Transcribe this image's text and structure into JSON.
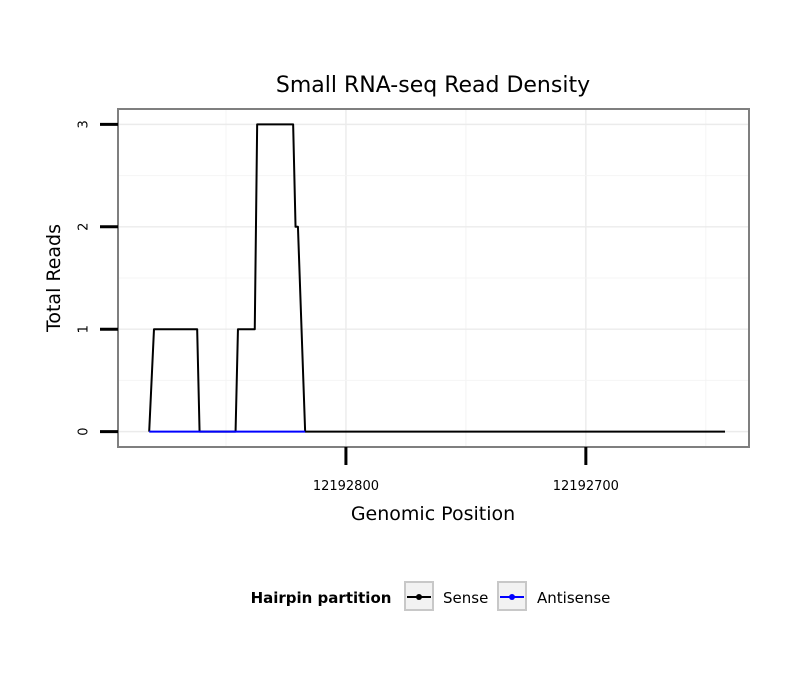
{
  "chart_data": {
    "type": "line",
    "title": "Small RNA-seq Read Density",
    "xlabel": "Genomic Position",
    "ylabel": "Total Reads",
    "x_reversed": true,
    "xlim": [
      12192895,
      12192632
    ],
    "ylim": [
      -0.15,
      3.15
    ],
    "x_ticks": [
      12192800,
      12192700
    ],
    "y_ticks": [
      0,
      1,
      2,
      3
    ],
    "grid": true,
    "legend": {
      "title": "Hairpin partition",
      "placement": "bottom",
      "entries": [
        "Sense",
        "Antisense"
      ]
    },
    "series": [
      {
        "name": "Sense",
        "color": "#000000",
        "points": [
          [
            12192882,
            0
          ],
          [
            12192880,
            1
          ],
          [
            12192862,
            1
          ],
          [
            12192861,
            0
          ],
          [
            12192846,
            0
          ],
          [
            12192845,
            1
          ],
          [
            12192838,
            1
          ],
          [
            12192837,
            3
          ],
          [
            12192822,
            3
          ],
          [
            12192821,
            2
          ],
          [
            12192820,
            2
          ],
          [
            12192817,
            0
          ],
          [
            12192642,
            0
          ]
        ]
      },
      {
        "name": "Antisense",
        "color": "#0000ff",
        "points": [
          [
            12192882,
            0
          ],
          [
            12192861,
            0
          ],
          [
            12192846,
            0
          ],
          [
            12192817,
            0
          ]
        ]
      }
    ]
  }
}
